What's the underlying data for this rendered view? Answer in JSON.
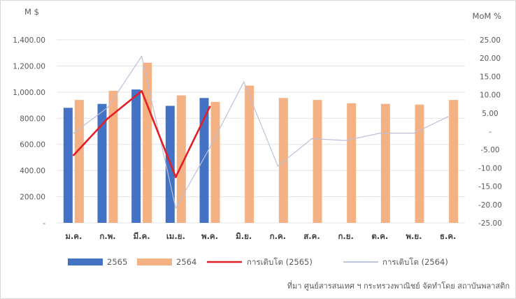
{
  "chart_data": {
    "type": "bar",
    "left_unit": "M $",
    "right_unit": "MoM %",
    "categories": [
      "ม.ค.",
      "ก.พ.",
      "มี.ค.",
      "เม.ย.",
      "พ.ค.",
      "มิ.ย.",
      "ก.ค.",
      "ส.ค.",
      "ก.ย.",
      "ต.ค.",
      "พ.ย.",
      "ธ.ค."
    ],
    "left_ticks": [
      "-",
      "200.00",
      "400.00",
      "600.00",
      "800.00",
      "1,000.00",
      "1,200.00",
      "1,400.00"
    ],
    "right_ticks": [
      "-25.00",
      "-20.00",
      "-15.00",
      "-10.00",
      "-5.00",
      "-",
      "5.00",
      "10.00",
      "15.00",
      "20.00",
      "25.00"
    ],
    "ylim_left": [
      0,
      1400
    ],
    "ylim_right": [
      -25,
      25
    ],
    "series": [
      {
        "name": "2565",
        "type": "bar",
        "axis": "left",
        "color": "#4472c4",
        "values": [
          880,
          910,
          1020,
          895,
          955,
          null,
          null,
          null,
          null,
          null,
          null,
          null
        ]
      },
      {
        "name": "2564",
        "type": "bar",
        "axis": "left",
        "color": "#f4b183",
        "values": [
          940,
          1010,
          1225,
          975,
          925,
          1050,
          955,
          940,
          915,
          910,
          905,
          940
        ]
      },
      {
        "name": "การเติบโต (2565)",
        "type": "line",
        "axis": "right",
        "color": "#e41e26",
        "values": [
          -6.5,
          3.5,
          11.0,
          -12.5,
          6.7,
          null,
          null,
          null,
          null,
          null,
          null,
          null
        ]
      },
      {
        "name": "การเติบโต (2564)",
        "type": "line",
        "axis": "right",
        "color": "#bfbfd9",
        "values": [
          -0.5,
          6.5,
          20.5,
          -21.0,
          -4.5,
          13.5,
          -9.5,
          -2.0,
          -2.5,
          -0.5,
          -0.5,
          4.0
        ]
      }
    ],
    "legend_position": "bottom",
    "grid": true
  },
  "source": "ที่มา ศูนย์สารสนเทศ ฯ กระทรวงพาณิชย์ จัดทำโดย สถาบันพลาสติก"
}
